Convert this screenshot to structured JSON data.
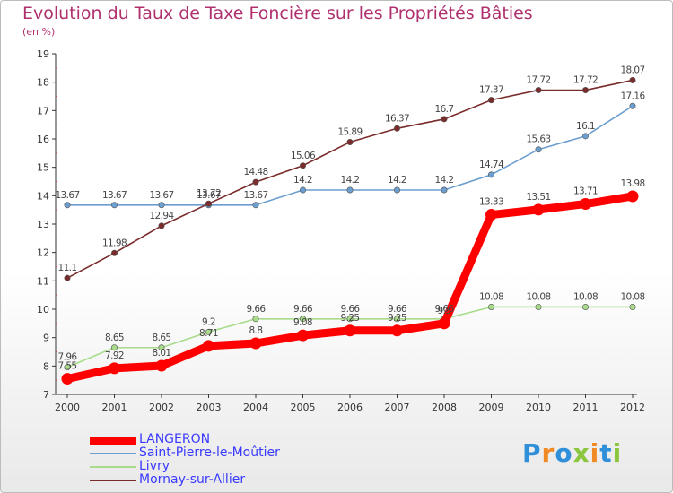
{
  "header": {
    "title": "Evolution du Taux de Taxe Foncière sur les Propriétés Bâties",
    "unit": "(en %)"
  },
  "logo": {
    "text": "Proxiti",
    "colors": [
      "#2f8fd8",
      "#f08a24",
      "#2f8fd8",
      "#8cc63f",
      "#f08a24",
      "#2f8fd8",
      "#8cc63f"
    ]
  },
  "chart_data": {
    "type": "line",
    "title": "Evolution du Taux de Taxe Foncière sur les Propriétés Bâties",
    "ylabel": "(en %)",
    "xlabel": "",
    "x": [
      "2000",
      "2001",
      "2002",
      "2003",
      "2004",
      "2005",
      "2006",
      "2007",
      "2008",
      "2009",
      "2010",
      "2011",
      "2012"
    ],
    "ylim": [
      7,
      19
    ],
    "yticks": [
      "7",
      "8",
      "9",
      "10",
      "11",
      "12",
      "13",
      "14",
      "15",
      "16",
      "17",
      "18",
      "19"
    ],
    "grid": false,
    "legend_position": "bottom-left",
    "series": [
      {
        "name": "LANGERON",
        "color": "#ff0000",
        "values": [
          7.55,
          7.92,
          8.01,
          8.71,
          8.8,
          9.08,
          9.25,
          9.25,
          9.5,
          13.33,
          13.51,
          13.71,
          13.98
        ],
        "labels": [
          "7.55",
          "7.92",
          "8.01",
          "8.71",
          "8.8",
          "9.08",
          "9.25",
          "9.25",
          "9.5",
          "13.33",
          "13.51",
          "13.71",
          "13.98"
        ]
      },
      {
        "name": "Saint-Pierre-le-Moûtier",
        "color": "#6c9ecf",
        "values": [
          13.67,
          13.67,
          13.67,
          13.67,
          13.67,
          14.2,
          14.2,
          14.2,
          14.2,
          14.74,
          15.63,
          16.1,
          17.16
        ],
        "labels": [
          "13.67",
          "13.67",
          "13.67",
          "13.67",
          "13.67",
          "14.2",
          "14.2",
          "14.2",
          "14.2",
          "14.74",
          "15.63",
          "16.1",
          "17.16"
        ]
      },
      {
        "name": "Livry",
        "color": "#a8dc8a",
        "values": [
          7.96,
          8.65,
          8.65,
          9.2,
          9.66,
          9.66,
          9.66,
          9.66,
          9.66,
          10.08,
          10.08,
          10.08,
          10.08
        ],
        "labels": [
          "7.96",
          "8.65",
          "8.65",
          "9.2",
          "9.66",
          "9.66",
          "9.66",
          "9.66",
          "9.66",
          "10.08",
          "10.08",
          "10.08",
          "10.08"
        ]
      },
      {
        "name": "Mornay-sur-Allier",
        "color": "#7a2b2b",
        "values": [
          11.1,
          11.98,
          12.94,
          13.72,
          14.48,
          15.06,
          15.89,
          16.37,
          16.7,
          17.37,
          17.72,
          17.72,
          18.07
        ],
        "labels": [
          "11.1",
          "11.98",
          "12.94",
          "13.72",
          "14.48",
          "15.06",
          "15.89",
          "16.37",
          "16.7",
          "17.37",
          "17.72",
          "17.72",
          "18.07"
        ]
      }
    ]
  }
}
